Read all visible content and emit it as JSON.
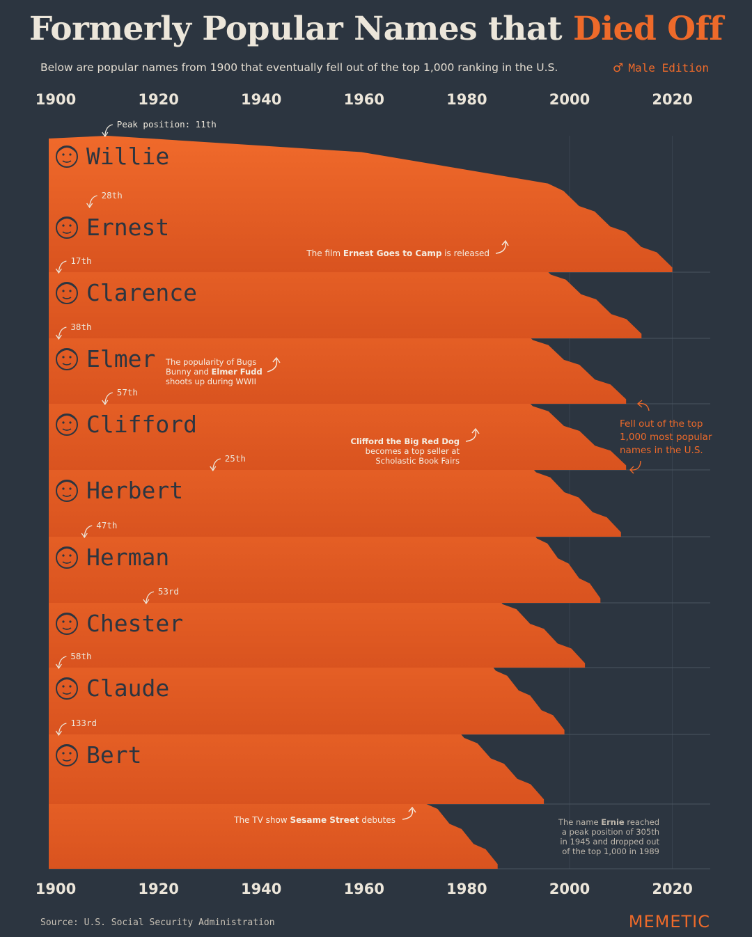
{
  "header": {
    "title_part1": "Formerly Popular Names that ",
    "title_part2": "Died Off",
    "subtitle": "Below are popular names from 1900 that eventually fell out of the top 1,000 ranking in the U.S.",
    "edition_symbol": "♂",
    "edition": "Male Edition"
  },
  "footer": {
    "source": "Source: U.S. Social Security Administration",
    "brand": "MEMETIC"
  },
  "colors": {
    "background": "#2c3540",
    "accent": "#ee6a2a",
    "fill": "#e8642a",
    "text": "#ece6da"
  },
  "chart_data": {
    "type": "area",
    "title": "Formerly Popular Names that Died Off",
    "x_ticks": [
      "1900",
      "1920",
      "1940",
      "1960",
      "1980",
      "2000",
      "2020"
    ],
    "xlim": [
      1900,
      2022
    ],
    "series": [
      {
        "name": "Willie",
        "peak_label": "Peak position: 11th",
        "peak_year": 1910,
        "drop_year": 2020,
        "icon": "face-icon"
      },
      {
        "name": "Ernest",
        "peak_label": "28th",
        "peak_year": 1907,
        "drop_year": 2014,
        "icon": "face-icon"
      },
      {
        "name": "Clarence",
        "peak_label": "17th",
        "peak_year": 1901,
        "drop_year": 2011,
        "icon": "face-icon"
      },
      {
        "name": "Elmer",
        "peak_label": "38th",
        "peak_year": 1901,
        "drop_year": 2011,
        "icon": "face-icon"
      },
      {
        "name": "Clifford",
        "peak_label": "57th",
        "peak_year": 1910,
        "drop_year": 2010,
        "icon": "face-icon"
      },
      {
        "name": "Herbert",
        "peak_label": "25th",
        "peak_year": 1931,
        "drop_year": 2006,
        "icon": "face-icon"
      },
      {
        "name": "Herman",
        "peak_label": "47th",
        "peak_year": 1906,
        "drop_year": 2003,
        "icon": "face-icon"
      },
      {
        "name": "Chester",
        "peak_label": "53rd",
        "peak_year": 1918,
        "drop_year": 1999,
        "icon": "face-icon"
      },
      {
        "name": "Claude",
        "peak_label": "58th",
        "peak_year": 1901,
        "drop_year": 1995,
        "icon": "face-icon"
      },
      {
        "name": "Bert",
        "peak_label": "133rd",
        "peak_year": 1901,
        "drop_year": 1986,
        "icon": "face-icon"
      }
    ],
    "annotations": {
      "ernest": {
        "prefix": "The film ",
        "bold": "Ernest Goes to Camp",
        "suffix": " is released"
      },
      "elmer": {
        "line1": "The popularity of Bugs",
        "line2_prefix": "Bunny and ",
        "line2_bold": "Elmer Fudd",
        "line3": "shoots up during WWII"
      },
      "clifford": {
        "line1_bold": "Clifford the Big Red Dog",
        "line2": "becomes a top seller at",
        "line3": "Scholastic Book Fairs"
      },
      "fell_out": {
        "line1": "Fell out of the top",
        "line2": "1,000 most popular",
        "line3": "names in the U.S."
      },
      "bert": {
        "prefix": "The TV show ",
        "bold": "Sesame Street",
        "suffix": " debutes"
      },
      "ernie": {
        "line1_prefix": "The name ",
        "line1_bold": "Ernie",
        "line1_suffix": " reached",
        "line2": "a peak position of 305th",
        "line3": "in 1945 and dropped out",
        "line4": "of the top 1,000 in 1989"
      }
    }
  }
}
